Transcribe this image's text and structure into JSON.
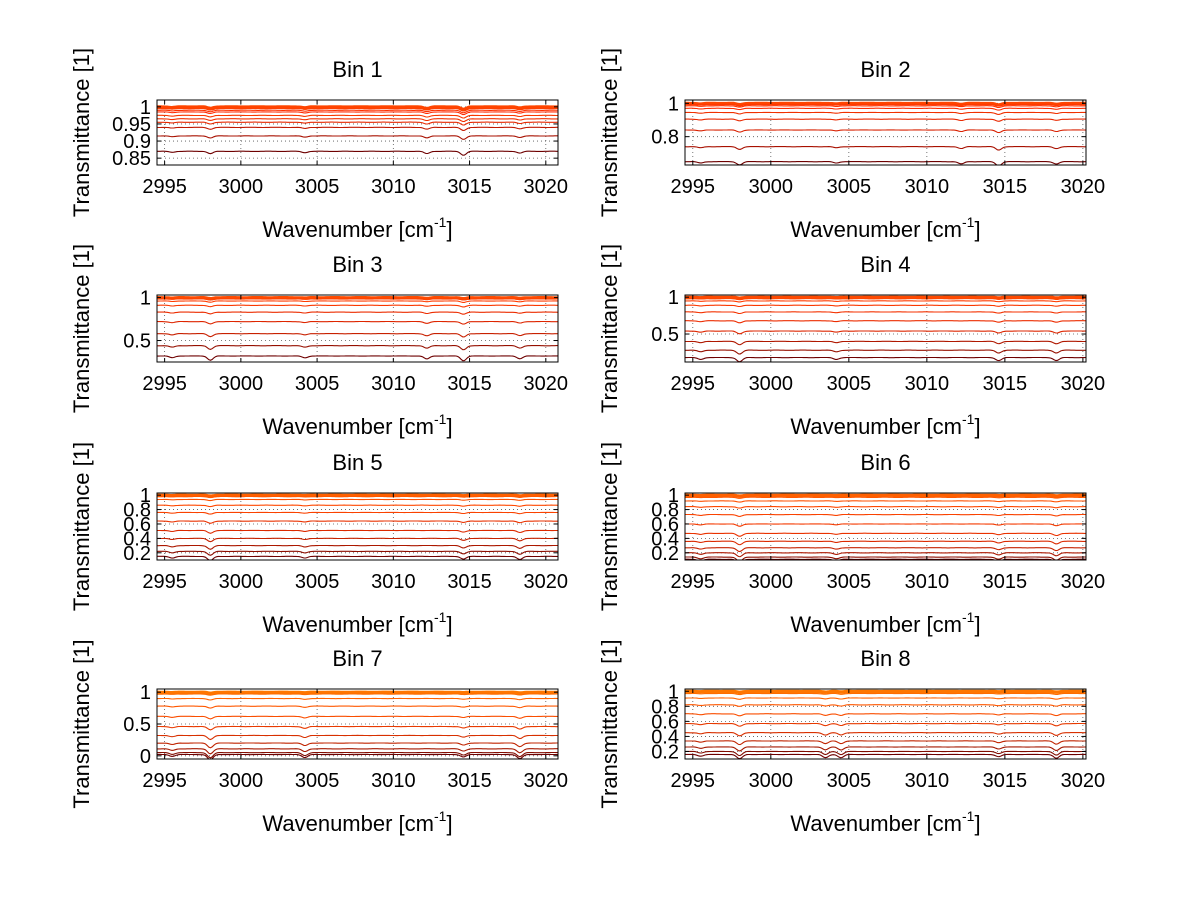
{
  "chart_data": [
    {
      "type": "line",
      "title": "Bin 1",
      "xlabel": "Wavenumber [cm",
      "xlabel_sup": "-1",
      "xlabel_end": "]",
      "ylabel": "Transmittance [1]",
      "xlim": [
        2994.5,
        3020.8
      ],
      "ylim": [
        0.83,
        1.02
      ],
      "xticks": [
        2995,
        3000,
        3005,
        3010,
        3015,
        3020
      ],
      "yticks": [
        {
          "v": 0.85,
          "t": "0.85"
        },
        {
          "v": 0.9,
          "t": "0.9"
        },
        {
          "v": 0.95,
          "t": "0.95"
        },
        {
          "v": 1,
          "t": "1"
        }
      ],
      "series_levels": [
        1.0,
        0.998,
        0.995,
        0.99,
        0.985,
        0.975,
        0.965,
        0.955,
        0.94,
        0.915,
        0.87
      ],
      "dips": [
        {
          "x": 2995.5,
          "d": 0.25
        },
        {
          "x": 2998.0,
          "d": 0.6
        },
        {
          "x": 3004.2,
          "d": 0.35
        },
        {
          "x": 3012.2,
          "d": 0.6
        },
        {
          "x": 3014.6,
          "d": 1.0
        },
        {
          "x": 3018.3,
          "d": 0.45
        }
      ],
      "dip_scale": 0.035
    },
    {
      "type": "line",
      "title": "Bin 2",
      "xlabel": "Wavenumber [cm",
      "xlabel_sup": "-1",
      "xlabel_end": "]",
      "ylabel": "Transmittance [1]",
      "xlim": [
        2994.5,
        3020.2
      ],
      "ylim": [
        0.63,
        1.02
      ],
      "xticks": [
        2995,
        3000,
        3005,
        3010,
        3015,
        3020
      ],
      "yticks": [
        {
          "v": 0.8,
          "t": "0.8"
        },
        {
          "v": 1,
          "t": "1"
        }
      ],
      "series_levels": [
        1.0,
        0.998,
        0.993,
        0.985,
        0.97,
        0.945,
        0.905,
        0.84,
        0.74,
        0.65
      ],
      "dips": [
        {
          "x": 2995.5,
          "d": 0.3
        },
        {
          "x": 2998.0,
          "d": 0.7
        },
        {
          "x": 3004.2,
          "d": 0.3
        },
        {
          "x": 3012.2,
          "d": 0.5
        },
        {
          "x": 3014.6,
          "d": 0.9
        },
        {
          "x": 3018.3,
          "d": 0.5
        }
      ],
      "dip_scale": 0.05
    },
    {
      "type": "line",
      "title": "Bin 3",
      "xlabel": "Wavenumber [cm",
      "xlabel_sup": "-1",
      "xlabel_end": "]",
      "ylabel": "Transmittance [1]",
      "xlim": [
        2994.5,
        3020.8
      ],
      "ylim": [
        0.25,
        1.03
      ],
      "xticks": [
        2995,
        3000,
        3005,
        3010,
        3015,
        3020
      ],
      "yticks": [
        {
          "v": 0.5,
          "t": "0.5"
        },
        {
          "v": 1,
          "t": "1"
        }
      ],
      "series_levels": [
        1.0,
        0.995,
        0.985,
        0.96,
        0.91,
        0.83,
        0.72,
        0.58,
        0.44,
        0.32
      ],
      "dips": [
        {
          "x": 2995.5,
          "d": 0.3
        },
        {
          "x": 2998.0,
          "d": 0.7
        },
        {
          "x": 3004.2,
          "d": 0.3
        },
        {
          "x": 3012.2,
          "d": 0.5
        },
        {
          "x": 3014.6,
          "d": 0.8
        },
        {
          "x": 3018.3,
          "d": 0.45
        }
      ],
      "dip_scale": 0.08
    },
    {
      "type": "line",
      "title": "Bin 4",
      "xlabel": "Wavenumber [cm",
      "xlabel_sup": "-1",
      "xlabel_end": "]",
      "ylabel": "Transmittance [1]",
      "xlim": [
        2994.5,
        3020.2
      ],
      "ylim": [
        0.12,
        1.03
      ],
      "xticks": [
        2995,
        3000,
        3005,
        3010,
        3015,
        3020
      ],
      "yticks": [
        {
          "v": 0.5,
          "t": "0.5"
        },
        {
          "v": 1,
          "t": "1"
        }
      ],
      "series_levels": [
        1.0,
        0.995,
        0.98,
        0.95,
        0.89,
        0.8,
        0.68,
        0.54,
        0.4,
        0.28,
        0.18
      ],
      "dips": [
        {
          "x": 2995.5,
          "d": 0.3
        },
        {
          "x": 2998.0,
          "d": 0.7
        },
        {
          "x": 3004.2,
          "d": 0.3
        },
        {
          "x": 3014.6,
          "d": 0.5
        },
        {
          "x": 3018.3,
          "d": 0.5
        }
      ],
      "dip_scale": 0.08
    },
    {
      "type": "line",
      "title": "Bin 5",
      "xlabel": "Wavenumber [cm",
      "xlabel_sup": "-1",
      "xlabel_end": "]",
      "ylabel": "Transmittance [1]",
      "xlim": [
        2994.5,
        3020.8
      ],
      "ylim": [
        0.1,
        1.03
      ],
      "xticks": [
        2995,
        3000,
        3005,
        3010,
        3015,
        3020
      ],
      "yticks": [
        {
          "v": 0.2,
          "t": "0.2"
        },
        {
          "v": 0.4,
          "t": "0.4"
        },
        {
          "v": 0.6,
          "t": "0.6"
        },
        {
          "v": 0.8,
          "t": "0.8"
        },
        {
          "v": 1,
          "t": "1"
        }
      ],
      "series_levels": [
        1.0,
        0.995,
        0.98,
        0.94,
        0.86,
        0.76,
        0.64,
        0.51,
        0.4,
        0.3,
        0.22,
        0.15
      ],
      "dips": [
        {
          "x": 2995.5,
          "d": 0.3
        },
        {
          "x": 2998.0,
          "d": 0.8
        },
        {
          "x": 3004.2,
          "d": 0.3
        },
        {
          "x": 3014.6,
          "d": 0.5
        },
        {
          "x": 3018.3,
          "d": 0.6
        }
      ],
      "dip_scale": 0.07
    },
    {
      "type": "line",
      "title": "Bin 6",
      "xlabel": "Wavenumber [cm",
      "xlabel_sup": "-1",
      "xlabel_end": "]",
      "ylabel": "Transmittance [1]",
      "xlim": [
        2994.5,
        3020.2
      ],
      "ylim": [
        0.1,
        1.03
      ],
      "xticks": [
        2995,
        3000,
        3005,
        3010,
        3015,
        3020
      ],
      "yticks": [
        {
          "v": 0.2,
          "t": "0.2"
        },
        {
          "v": 0.4,
          "t": "0.4"
        },
        {
          "v": 0.6,
          "t": "0.6"
        },
        {
          "v": 0.8,
          "t": "0.8"
        },
        {
          "v": 1,
          "t": "1"
        }
      ],
      "series_levels": [
        1.0,
        0.995,
        0.97,
        0.92,
        0.84,
        0.73,
        0.6,
        0.47,
        0.36,
        0.27,
        0.2,
        0.14,
        0.11
      ],
      "dips": [
        {
          "x": 2995.5,
          "d": 0.3
        },
        {
          "x": 2998.0,
          "d": 0.8
        },
        {
          "x": 3004.2,
          "d": 0.3
        },
        {
          "x": 3014.6,
          "d": 0.4
        },
        {
          "x": 3018.3,
          "d": 0.6
        }
      ],
      "dip_scale": 0.07
    },
    {
      "type": "line",
      "title": "Bin 7",
      "xlabel": "Wavenumber [cm",
      "xlabel_sup": "-1",
      "xlabel_end": "]",
      "ylabel": "Transmittance [1]",
      "xlim": [
        2994.5,
        3020.8
      ],
      "ylim": [
        -0.05,
        1.05
      ],
      "xticks": [
        2995,
        3000,
        3005,
        3010,
        3015,
        3020
      ],
      "yticks": [
        {
          "v": 0,
          "t": "0"
        },
        {
          "v": 0.5,
          "t": "0.5"
        },
        {
          "v": 1,
          "t": "1"
        }
      ],
      "series_levels": [
        1.0,
        0.995,
        0.97,
        0.9,
        0.78,
        0.62,
        0.46,
        0.32,
        0.2,
        0.11,
        0.05,
        0.02
      ],
      "dips": [
        {
          "x": 2995.5,
          "d": 0.3
        },
        {
          "x": 2998.0,
          "d": 0.9
        },
        {
          "x": 3004.2,
          "d": 0.5
        },
        {
          "x": 3014.6,
          "d": 0.4
        },
        {
          "x": 3018.3,
          "d": 0.7
        }
      ],
      "dip_scale": 0.08
    },
    {
      "type": "line",
      "title": "Bin 8",
      "xlabel": "Wavenumber [cm",
      "xlabel_sup": "-1",
      "xlabel_end": "]",
      "ylabel": "Transmittance [1]",
      "xlim": [
        2994.5,
        3020.2
      ],
      "ylim": [
        0.1,
        1.03
      ],
      "xticks": [
        2995,
        3000,
        3005,
        3010,
        3015,
        3020
      ],
      "yticks": [
        {
          "v": 0.2,
          "t": "0.2"
        },
        {
          "v": 0.4,
          "t": "0.4"
        },
        {
          "v": 0.6,
          "t": "0.6"
        },
        {
          "v": 0.8,
          "t": "0.8"
        },
        {
          "v": 1,
          "t": "1"
        }
      ],
      "series_levels": [
        1.0,
        0.995,
        0.97,
        0.91,
        0.82,
        0.7,
        0.57,
        0.45,
        0.34,
        0.26,
        0.2,
        0.16
      ],
      "dips": [
        {
          "x": 2995.5,
          "d": 0.3
        },
        {
          "x": 2998.0,
          "d": 0.8
        },
        {
          "x": 3003.5,
          "d": 0.6
        },
        {
          "x": 3004.5,
          "d": 0.6
        },
        {
          "x": 3014.6,
          "d": 0.4
        },
        {
          "x": 3018.3,
          "d": 0.7
        }
      ],
      "dip_scale": 0.07
    }
  ]
}
